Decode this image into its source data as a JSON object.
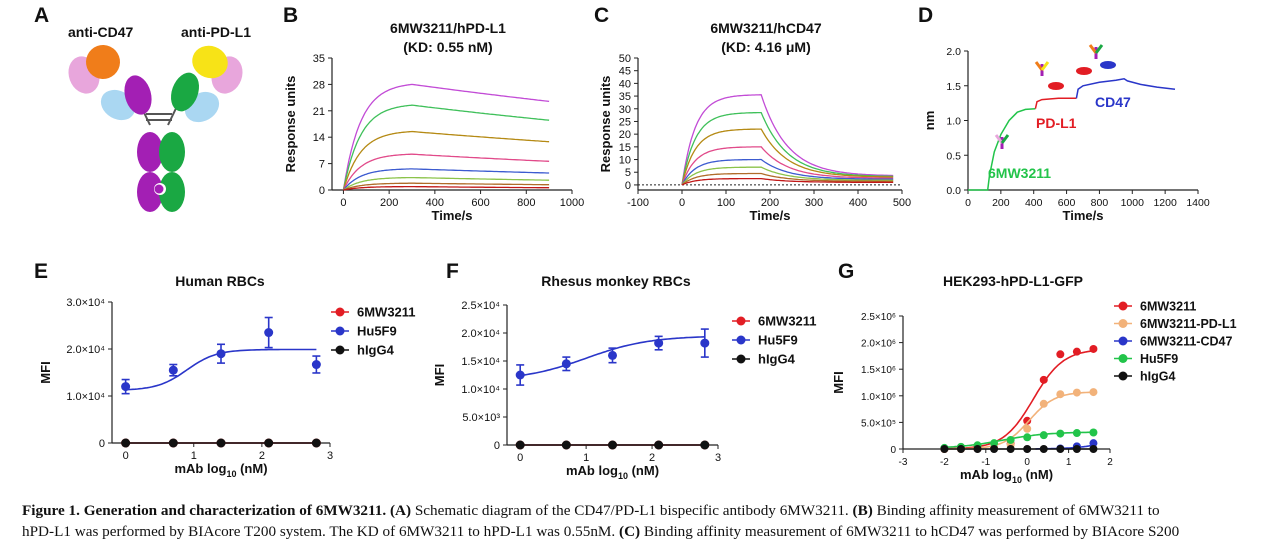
{
  "colors": {
    "axis": "#222",
    "text": "#111",
    "red": "#e21d24",
    "blue": "#2a36c9",
    "black": "#111",
    "green": "#22c44a",
    "peach": "#f2b27a",
    "orange": "#f07d1a",
    "pink": "#e8a6dc",
    "lightblue": "#aad7f2",
    "purple": "#a31fb4",
    "darkgreen": "#1aa843",
    "yellow": "#f7e317"
  },
  "panelA": {
    "letter": "A",
    "label_left": "anti-CD47",
    "label_right": "anti-PD-L1"
  },
  "panelB": {
    "letter": "B",
    "title1": "6MW3211/hPD-L1",
    "title2": "(KD: 0.55 nM)"
  },
  "panelC": {
    "letter": "C",
    "title1": "6MW3211/hCD47",
    "title2": "(KD: 4.16 μM)"
  },
  "panelD": {
    "letter": "D",
    "label_6mw": "6MW3211",
    "label_pdl1": "PD-L1",
    "label_cd47": "CD47"
  },
  "panelE": {
    "letter": "E",
    "title": "Human RBCs"
  },
  "panelF": {
    "letter": "F",
    "title": "Rhesus monkey RBCs"
  },
  "panelG": {
    "letter": "G",
    "title": "HEK293-hPD-L1-GFP"
  },
  "chart_data": [
    {
      "id": "B",
      "type": "line",
      "title": "6MW3211/hPD-L1 (KD: 0.55 nM)",
      "xlabel": "Time/s",
      "ylabel": "Response units",
      "xlim": [
        -50,
        1000
      ],
      "ylim": [
        0,
        35
      ],
      "xticks": [
        0,
        200,
        400,
        600,
        800,
        1000
      ],
      "yticks": [
        0,
        7,
        14,
        21,
        28,
        35
      ],
      "association_end": 300,
      "x_end": 900,
      "series": [
        {
          "color": "#c24bd6",
          "peak": 28.0,
          "end": 23.5
        },
        {
          "color": "#3fc05a",
          "peak": 22.5,
          "end": 18.5
        },
        {
          "color": "#b58a14",
          "peak": 15.5,
          "end": 12.8
        },
        {
          "color": "#e14a8a",
          "peak": 9.5,
          "end": 7.6
        },
        {
          "color": "#3c5bd0",
          "peak": 5.6,
          "end": 4.5
        },
        {
          "color": "#8bc34a",
          "peak": 3.3,
          "end": 2.6
        },
        {
          "color": "#b06c2a",
          "peak": 1.8,
          "end": 1.4
        },
        {
          "color": "#c21818",
          "peak": 0.9,
          "end": 0.6
        }
      ]
    },
    {
      "id": "C",
      "type": "line",
      "title": "6MW3211/hCD47 (KD: 4.16 μM)",
      "xlabel": "Time/s",
      "ylabel": "Response units",
      "xlim": [
        -100,
        500
      ],
      "ylim": [
        -2,
        50
      ],
      "xticks": [
        -100,
        0,
        100,
        200,
        300,
        400,
        500
      ],
      "yticks": [
        0,
        5,
        10,
        15,
        20,
        25,
        30,
        35,
        40,
        45,
        50
      ],
      "association_end": 180,
      "x_end": 480,
      "series": [
        {
          "color": "#c24bd6",
          "peak": 35.5,
          "end": 3.5
        },
        {
          "color": "#3fc05a",
          "peak": 28.5,
          "end": 3.2
        },
        {
          "color": "#b58a14",
          "peak": 22.0,
          "end": 3.0
        },
        {
          "color": "#e14a8a",
          "peak": 15.0,
          "end": 2.6
        },
        {
          "color": "#3c5bd0",
          "peak": 10.0,
          "end": 2.2
        },
        {
          "color": "#8bc34a",
          "peak": 7.0,
          "end": 1.8
        },
        {
          "color": "#b06c2a",
          "peak": 4.5,
          "end": 1.4
        },
        {
          "color": "#c21818",
          "peak": 2.5,
          "end": 1.0
        }
      ]
    },
    {
      "id": "D",
      "type": "line",
      "xlabel": "Time/s",
      "ylabel": "nm",
      "xlim": [
        0,
        1400
      ],
      "ylim": [
        0,
        2.0
      ],
      "xticks": [
        0,
        200,
        400,
        600,
        800,
        1000,
        1200,
        1400
      ],
      "yticks": [
        0.0,
        0.5,
        1.0,
        1.5,
        2.0
      ],
      "segments": [
        {
          "color": "#22c44a",
          "points": [
            [
              0,
              0
            ],
            [
              120,
              0
            ],
            [
              130,
              0.2
            ],
            [
              160,
              0.55
            ],
            [
              200,
              0.8
            ],
            [
              250,
              1.0
            ],
            [
              300,
              1.12
            ],
            [
              350,
              1.16
            ],
            [
              410,
              1.17
            ]
          ]
        },
        {
          "color": "#e21d24",
          "points": [
            [
              410,
              1.17
            ],
            [
              420,
              1.27
            ],
            [
              450,
              1.3
            ],
            [
              550,
              1.32
            ],
            [
              660,
              1.32
            ]
          ]
        },
        {
          "color": "#2a36c9",
          "points": [
            [
              660,
              1.32
            ],
            [
              670,
              1.45
            ],
            [
              700,
              1.5
            ],
            [
              800,
              1.55
            ],
            [
              900,
              1.58
            ],
            [
              950,
              1.6
            ],
            [
              970,
              1.57
            ],
            [
              1050,
              1.52
            ],
            [
              1150,
              1.48
            ],
            [
              1260,
              1.45
            ]
          ]
        }
      ]
    },
    {
      "id": "E",
      "type": "scatter-curve",
      "title": "Human RBCs",
      "xlabel": "mAb log10 (nM)",
      "ylabel": "MFI",
      "xlim": [
        -0.2,
        3
      ],
      "ylim": [
        0,
        30000
      ],
      "xticks": [
        0,
        1,
        2,
        3
      ],
      "yticks": [
        0,
        10000,
        20000,
        30000
      ],
      "ytick_labels": [
        "0",
        "1.0×10⁴",
        "2.0×10⁴",
        "3.0×10⁴"
      ],
      "legend": [
        "6MW3211",
        "Hu5F9",
        "hIgG4"
      ],
      "series": [
        {
          "name": "6MW3211",
          "color": "#e21d24",
          "x": [
            0,
            0.7,
            1.4,
            2.1,
            2.8
          ],
          "y": [
            0,
            0,
            0,
            0,
            0
          ],
          "err": [
            0,
            0,
            0,
            0,
            0
          ]
        },
        {
          "name": "Hu5F9",
          "color": "#2a36c9",
          "x": [
            0,
            0.7,
            1.4,
            2.1,
            2.8
          ],
          "y": [
            12000,
            15500,
            19000,
            23500,
            16700
          ],
          "err": [
            1500,
            1200,
            2000,
            3200,
            1800
          ],
          "fit": {
            "bottom": 11200,
            "top": 19900,
            "ec50": 0.9,
            "hill": 2.0
          }
        },
        {
          "name": "hIgG4",
          "color": "#111111",
          "x": [
            0,
            0.7,
            1.4,
            2.1,
            2.8
          ],
          "y": [
            0,
            0,
            0,
            0,
            0
          ],
          "err": [
            0,
            0,
            0,
            0,
            0
          ]
        }
      ]
    },
    {
      "id": "F",
      "type": "scatter-curve",
      "title": "Rhesus monkey RBCs",
      "xlabel": "mAb log10 (nM)",
      "ylabel": "MFI",
      "xlim": [
        -0.2,
        3
      ],
      "ylim": [
        0,
        25000
      ],
      "xticks": [
        0,
        1,
        2,
        3
      ],
      "yticks": [
        0,
        5000,
        10000,
        15000,
        20000,
        25000
      ],
      "ytick_labels": [
        "0",
        "5.0×10³",
        "1.0×10⁴",
        "1.5×10⁴",
        "2.0×10⁴",
        "2.5×10⁴"
      ],
      "legend": [
        "6MW3211",
        "Hu5F9",
        "hIgG4"
      ],
      "series": [
        {
          "name": "6MW3211",
          "color": "#e21d24",
          "x": [
            0,
            0.7,
            1.4,
            2.1,
            2.8
          ],
          "y": [
            0,
            0,
            0,
            0,
            0
          ],
          "err": [
            0,
            0,
            0,
            0,
            0
          ]
        },
        {
          "name": "Hu5F9",
          "color": "#2a36c9",
          "x": [
            0,
            0.7,
            1.4,
            2.1,
            2.8
          ],
          "y": [
            12500,
            14500,
            16000,
            18200,
            18200
          ],
          "err": [
            1800,
            1200,
            1300,
            1200,
            2500
          ],
          "fit": {
            "bottom": 11500,
            "top": 19500,
            "ec50": 1.0,
            "hill": 0.9
          }
        },
        {
          "name": "hIgG4",
          "color": "#111111",
          "x": [
            0,
            0.7,
            1.4,
            2.1,
            2.8
          ],
          "y": [
            0,
            0,
            0,
            0,
            0
          ],
          "err": [
            0,
            0,
            0,
            0,
            0
          ]
        }
      ]
    },
    {
      "id": "G",
      "type": "scatter-curve",
      "title": "HEK293-hPD-L1-GFP",
      "xlabel": "mAb log10 (nM)",
      "ylabel": "MFI",
      "xlim": [
        -3,
        2
      ],
      "ylim": [
        0,
        2500000
      ],
      "xticks": [
        -3,
        -2,
        -1,
        0,
        1,
        2
      ],
      "yticks": [
        0,
        500000,
        1000000,
        1500000,
        2000000,
        2500000
      ],
      "ytick_labels": [
        "0",
        "5.0×10⁵",
        "1.0×10⁶",
        "1.5×10⁶",
        "2.0×10⁶",
        "2.5×10⁶"
      ],
      "legend": [
        "6MW3211",
        "6MW3211-PD-L1",
        "6MW3211-CD47",
        "Hu5F9",
        "hIgG4"
      ],
      "series": [
        {
          "name": "6MW3211",
          "color": "#e21d24",
          "x": [
            -2,
            -1.6,
            -1.2,
            -0.8,
            -0.4,
            0,
            0.4,
            0.8,
            1.2,
            1.6
          ],
          "y": [
            0,
            2000,
            5000,
            20000,
            100000,
            530000,
            1300000,
            1780000,
            1830000,
            1880000
          ],
          "fit": {
            "bottom": 0,
            "top": 1880000,
            "ec50": 0.15,
            "hill": 1.2
          }
        },
        {
          "name": "6MW3211-PD-L1",
          "color": "#f2b27a",
          "x": [
            -2,
            -1.6,
            -1.2,
            -0.8,
            -0.4,
            0,
            0.4,
            0.8,
            1.2,
            1.6
          ],
          "y": [
            0,
            2000,
            5000,
            15000,
            80000,
            380000,
            850000,
            1030000,
            1060000,
            1070000
          ],
          "fit": {
            "bottom": 0,
            "top": 1075000,
            "ec50": 0.05,
            "hill": 1.4
          }
        },
        {
          "name": "6MW3211-CD47",
          "color": "#2a36c9",
          "x": [
            0.8,
            1.2,
            1.6
          ],
          "y": [
            10000,
            50000,
            110000
          ],
          "fit": {
            "bottom": 0,
            "top": 400000,
            "ec50": 2.2,
            "hill": 1.1,
            "from": 0.2
          }
        },
        {
          "name": "Hu5F9",
          "color": "#22c44a",
          "x": [
            -2,
            -1.6,
            -1.2,
            -0.8,
            -0.4,
            0,
            0.4,
            0.8,
            1.2,
            1.6
          ],
          "y": [
            20000,
            40000,
            70000,
            110000,
            170000,
            220000,
            260000,
            290000,
            300000,
            310000
          ],
          "fit": {
            "bottom": 10000,
            "top": 320000,
            "ec50": -0.6,
            "hill": 0.8
          }
        },
        {
          "name": "hIgG4",
          "color": "#111111",
          "x": [
            -2,
            -1.6,
            -1.2,
            -0.8,
            -0.4,
            0,
            0.4,
            0.8,
            1.2,
            1.6
          ],
          "y": [
            0,
            0,
            0,
            0,
            0,
            0,
            0,
            0,
            0,
            0
          ]
        }
      ]
    }
  ],
  "caption": {
    "bold_title": "Figure 1. Generation and characterization of 6MW3211.",
    "a_tag": "(A)",
    "a_text": " Schematic diagram of the CD47/PD-L1 bispecific antibody 6MW3211. ",
    "b_tag": "(B)",
    "b_text": " Binding affinity measurement of 6MW3211 to",
    "b_text2": "hPD-L1 was performed by BIAcore T200 system. The KD of 6MW3211 to hPD-L1 was 0.55nM. ",
    "c_tag": "(C)",
    "c_text": " Binding affinity measurement of 6MW3211 to hCD47 was performed by BIAcore S200"
  }
}
